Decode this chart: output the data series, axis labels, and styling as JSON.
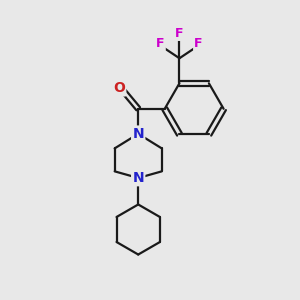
{
  "background_color": "#e8e8e8",
  "bond_color": "#1a1a1a",
  "nitrogen_color": "#2222cc",
  "oxygen_color": "#cc2222",
  "fluorine_color": "#cc00cc",
  "line_width": 1.6,
  "figsize": [
    3.0,
    3.0
  ],
  "dpi": 100,
  "xlim": [
    0,
    10
  ],
  "ylim": [
    0,
    10
  ]
}
